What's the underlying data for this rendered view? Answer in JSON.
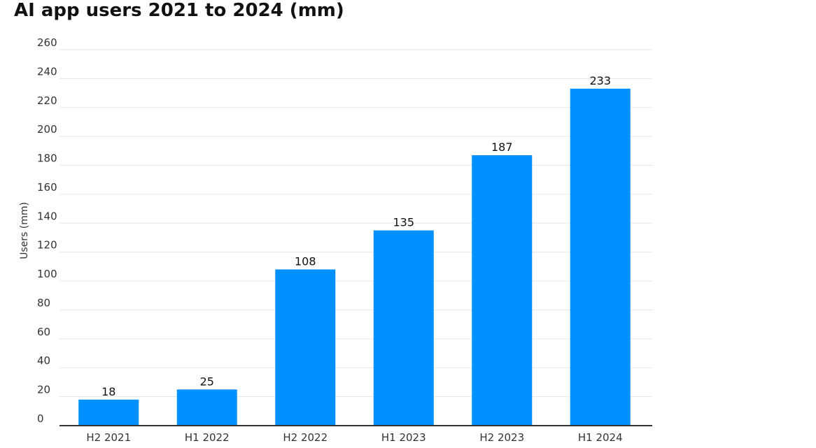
{
  "chart_data": {
    "type": "bar",
    "title": "AI app users 2021 to 2024 (mm)",
    "xlabel": "",
    "ylabel": "Users (mm)",
    "categories": [
      "H2 2021",
      "H1 2022",
      "H2 2022",
      "H1 2023",
      "H2 2023",
      "H1 2024"
    ],
    "values": [
      18,
      25,
      108,
      135,
      187,
      233
    ],
    "data_labels": [
      "18",
      "25",
      "108",
      "135",
      "187",
      "233"
    ],
    "y_ticks": [
      0,
      20,
      40,
      60,
      80,
      100,
      120,
      140,
      160,
      180,
      200,
      220,
      240,
      260
    ],
    "ylim": [
      0,
      260
    ],
    "grid": true,
    "legend": "none",
    "bar_color": "#0090ff"
  }
}
